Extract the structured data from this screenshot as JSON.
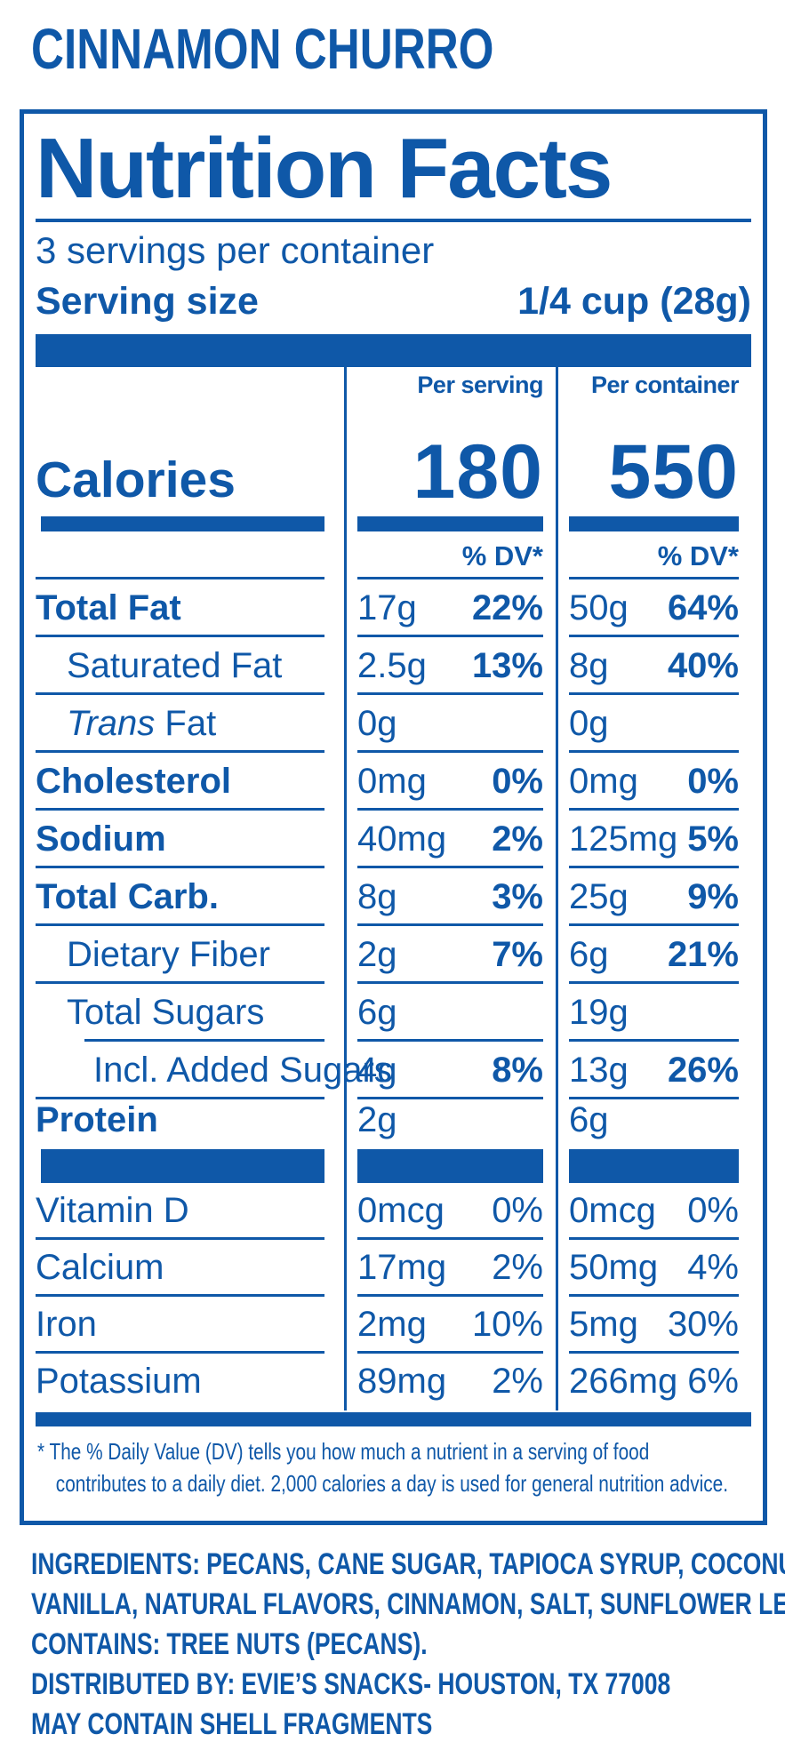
{
  "brand_color": "#0f58a8",
  "product_title": "CINNAMON CHURRO",
  "nutrition": {
    "title": "Nutrition Facts",
    "servings_per_container": "3 servings per container",
    "serving_size": {
      "label": "Serving size",
      "value": "1/4 cup (28g)"
    },
    "columns": {
      "per_serving": "Per serving",
      "per_container": "Per container"
    },
    "calories": {
      "label": "Calories",
      "per_serving": "180",
      "per_container": "550"
    },
    "dv_header": "% DV*",
    "rows": [
      {
        "name": "Total Fat",
        "ps_amt": "17g",
        "ps_dv": "22%",
        "pc_amt": "50g",
        "pc_dv": "64%"
      },
      {
        "name": "Saturated Fat",
        "ps_amt": "2.5g",
        "ps_dv": "13%",
        "pc_amt": "8g",
        "pc_dv": "40%"
      },
      {
        "name_italic": "Trans",
        "name": " Fat",
        "ps_amt": "0g",
        "ps_dv": "",
        "pc_amt": "0g",
        "pc_dv": ""
      },
      {
        "name": "Cholesterol",
        "ps_amt": "0mg",
        "ps_dv": "0%",
        "pc_amt": "0mg",
        "pc_dv": "0%"
      },
      {
        "name": "Sodium",
        "ps_amt": "40mg",
        "ps_dv": "2%",
        "pc_amt": "125mg",
        "pc_dv": "5%"
      },
      {
        "name": "Total Carb.",
        "ps_amt": "8g",
        "ps_dv": "3%",
        "pc_amt": "25g",
        "pc_dv": "9%"
      },
      {
        "name": "Dietary Fiber",
        "ps_amt": "2g",
        "ps_dv": "7%",
        "pc_amt": "6g",
        "pc_dv": "21%"
      },
      {
        "name": "Total Sugars",
        "ps_amt": "6g",
        "ps_dv": "",
        "pc_amt": "19g",
        "pc_dv": ""
      },
      {
        "name": "Incl. Added Sugars",
        "ps_amt": "4g",
        "ps_dv": "8%",
        "pc_amt": "13g",
        "pc_dv": "26%"
      },
      {
        "name": "Protein",
        "ps_amt": "2g",
        "ps_dv": "",
        "pc_amt": "6g",
        "pc_dv": ""
      }
    ],
    "minerals": [
      {
        "name": "Vitamin D",
        "ps_amt": "0mcg",
        "ps_dv": "0%",
        "pc_amt": "0mcg",
        "pc_dv": "0%"
      },
      {
        "name": "Calcium",
        "ps_amt": "17mg",
        "ps_dv": "2%",
        "pc_amt": "50mg",
        "pc_dv": "4%"
      },
      {
        "name": "Iron",
        "ps_amt": "2mg",
        "ps_dv": "10%",
        "pc_amt": "5mg",
        "pc_dv": "30%"
      },
      {
        "name": "Potassium",
        "ps_amt": "89mg",
        "ps_dv": "2%",
        "pc_amt": "266mg",
        "pc_dv": "6%"
      }
    ],
    "footnote": {
      "line1": "* The % Daily Value (DV) tells you how much a nutrient in a serving of food",
      "line2": "contributes to a daily diet. 2,000 calories a day is used for general nutrition advice."
    }
  },
  "supplement": {
    "ingredients_label": "INGREDIENTS:",
    "ingredients_line1": "PECANS, CANE SUGAR, TAPIOCA SYRUP, COCONUT OIL,",
    "ingredients_line2": "VANILLA, NATURAL FLAVORS, CINNAMON, SALT, SUNFLOWER LECITHIN.",
    "contains_label": "CONTAINS:",
    "contains_text": "TREE NUTS (PECANS).",
    "distributed_label": "DISTRIBUTED BY:",
    "distributed_text": "EVIE’S SNACKS- HOUSTON, TX 77008",
    "may_contain": "MAY CONTAIN SHELL FRAGMENTS"
  }
}
